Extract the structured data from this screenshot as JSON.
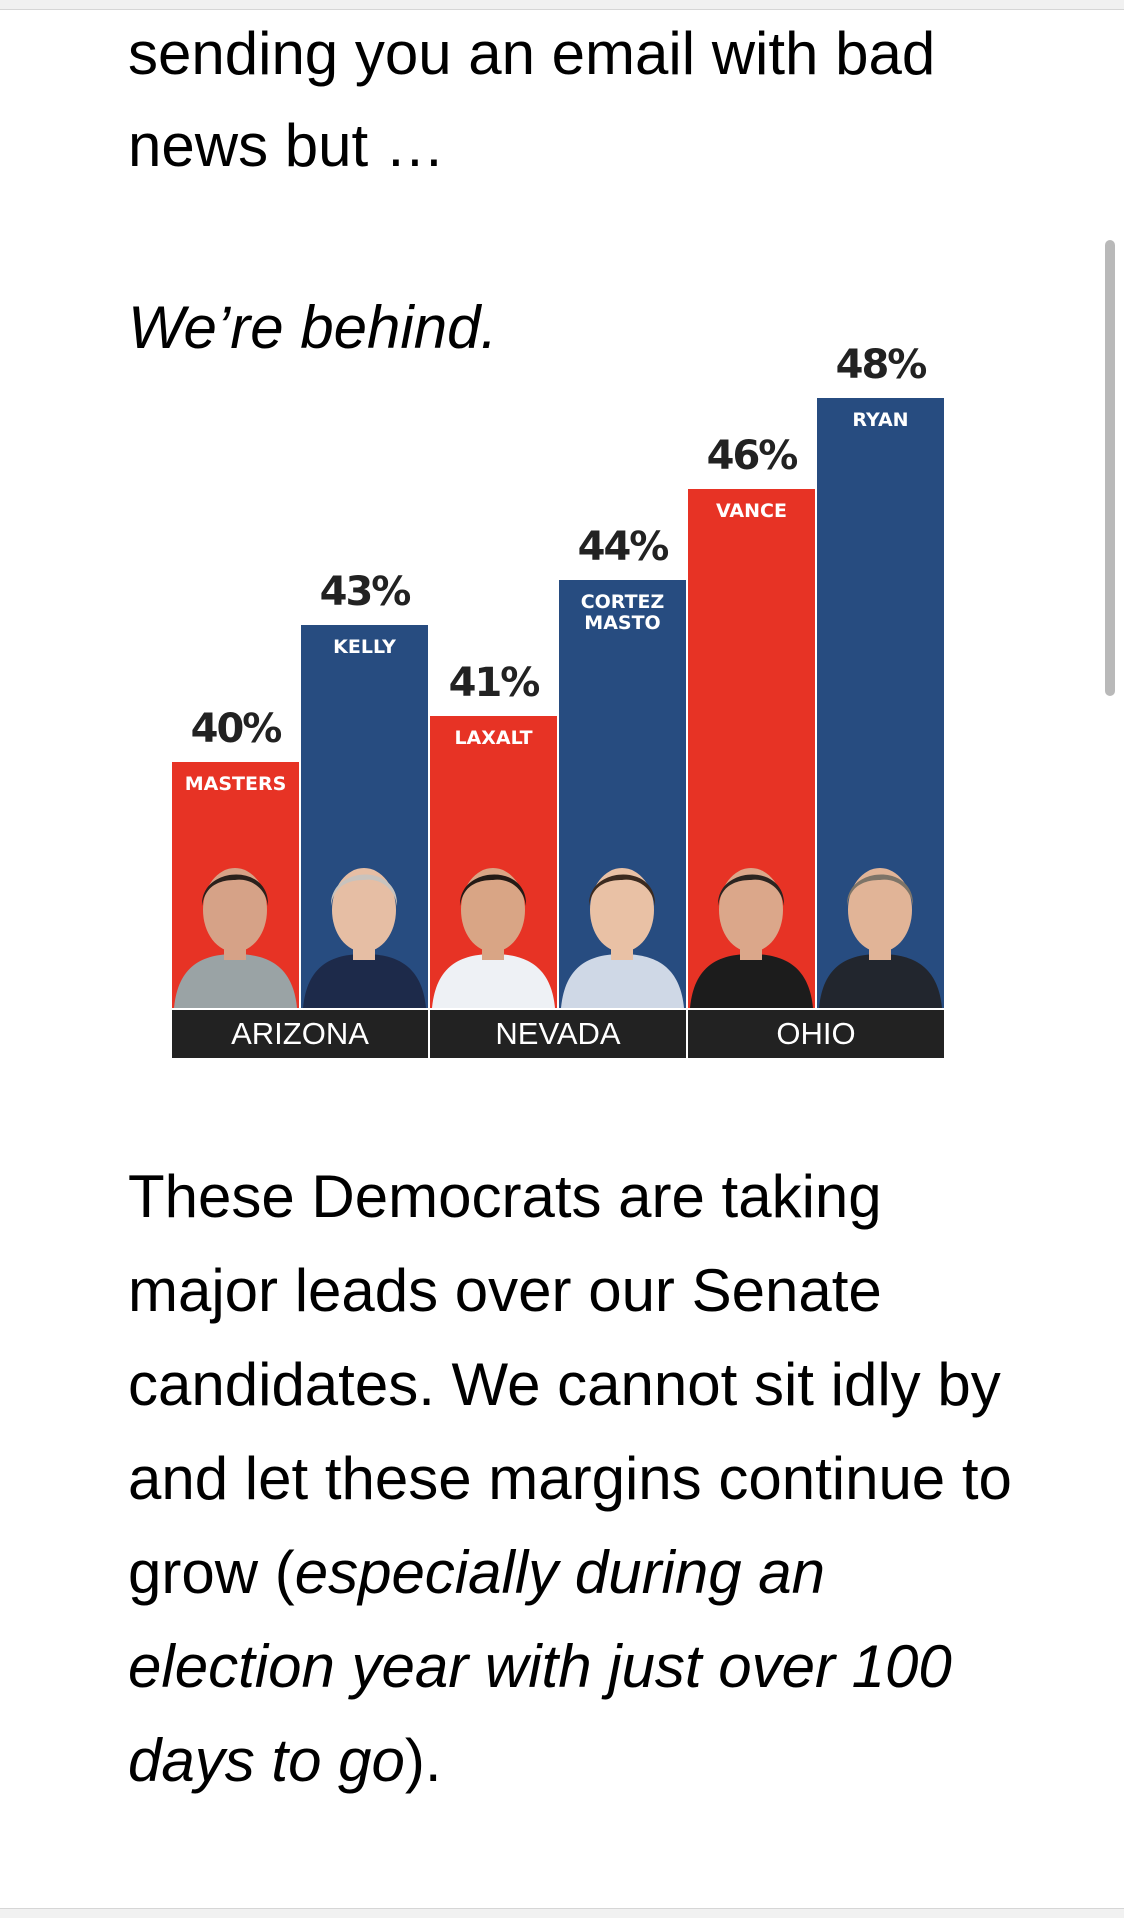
{
  "intro_text": "sending you an email with bad news but …",
  "behind_text": "We’re behind.",
  "body": {
    "part1": "These Democrats are taking major leads over our Senate candidates. We cannot sit idly by and let these margins continue to grow (",
    "italic": "especially during an election year with just over 100 days to go",
    "part2": ")."
  },
  "colors": {
    "republican": "#e73325",
    "democrat": "#274c80",
    "state_band": "#222222"
  },
  "chart_data": {
    "type": "bar",
    "title": "",
    "xlabel": "",
    "ylabel": "",
    "grid": false,
    "groups": [
      "ARIZONA",
      "NEVADA",
      "OHIO"
    ],
    "bars": [
      {
        "name": "MASTERS",
        "state": "ARIZONA",
        "party": "republican",
        "value": 40,
        "label": "40%"
      },
      {
        "name": "KELLY",
        "state": "ARIZONA",
        "party": "democrat",
        "value": 43,
        "label": "43%"
      },
      {
        "name": "LAXALT",
        "state": "NEVADA",
        "party": "republican",
        "value": 41,
        "label": "41%"
      },
      {
        "name": "CORTEZ\nMASTO",
        "state": "NEVADA",
        "party": "democrat",
        "value": 44,
        "label": "44%"
      },
      {
        "name": "VANCE",
        "state": "OHIO",
        "party": "republican",
        "value": 46,
        "label": "46%"
      },
      {
        "name": "RYAN",
        "state": "OHIO",
        "party": "democrat",
        "value": 48,
        "label": "48%"
      }
    ]
  }
}
